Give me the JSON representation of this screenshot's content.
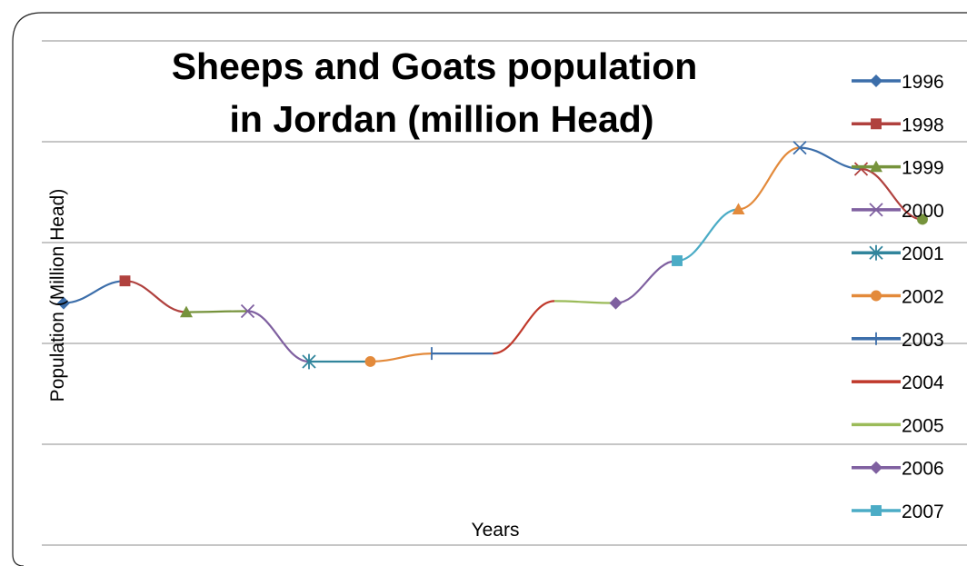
{
  "chart_data": {
    "type": "line",
    "title_lines": [
      "Sheeps and Goats population",
      "in Jordan (million Head)"
    ],
    "xlabel": "Years",
    "ylabel": "Population (Million Head)",
    "grid": true,
    "legend_position": "right",
    "ylim": [
      0,
      5
    ],
    "series": [
      {
        "name": "1996",
        "color": "#3c6eaa",
        "marker": "diamond",
        "x": [
          0,
          1
        ],
        "y": [
          2.4,
          2.62
        ]
      },
      {
        "name": "1998",
        "color": "#b0413e",
        "marker": "square",
        "x": [
          1,
          2
        ],
        "y": [
          2.62,
          2.31
        ]
      },
      {
        "name": "1999",
        "color": "#76933c",
        "marker": "triangle",
        "x": [
          2,
          3
        ],
        "y": [
          2.31,
          2.32
        ]
      },
      {
        "name": "2000",
        "color": "#7f60a0",
        "marker": "x",
        "x": [
          3,
          4
        ],
        "y": [
          2.32,
          1.82
        ]
      },
      {
        "name": "2001",
        "color": "#31859c",
        "marker": "star",
        "x": [
          4,
          5
        ],
        "y": [
          1.82,
          1.82
        ]
      },
      {
        "name": "2002",
        "color": "#e38a3b",
        "marker": "circle",
        "x": [
          5,
          6
        ],
        "y": [
          1.82,
          1.9
        ]
      },
      {
        "name": "2003",
        "color": "#3c6eaa",
        "marker": "plus",
        "x": [
          6,
          7
        ],
        "y": [
          1.9,
          1.9
        ]
      },
      {
        "name": "2004",
        "color": "#c0392b",
        "marker": "none",
        "x": [
          7,
          8
        ],
        "y": [
          1.9,
          2.42
        ]
      },
      {
        "name": "2005",
        "color": "#9bbb59",
        "marker": "none",
        "x": [
          8,
          9
        ],
        "y": [
          2.42,
          2.4
        ]
      },
      {
        "name": "2006",
        "color": "#7f60a0",
        "marker": "diamond",
        "x": [
          9,
          10
        ],
        "y": [
          2.4,
          2.82
        ]
      },
      {
        "name": "2007",
        "color": "#4bacc6",
        "marker": "square",
        "x": [
          10,
          11
        ],
        "y": [
          2.82,
          3.33
        ]
      },
      {
        "name": "",
        "color": "#e38a3b",
        "marker": "triangle",
        "x": [
          11,
          12
        ],
        "y": [
          3.33,
          3.94
        ]
      },
      {
        "name": "",
        "color": "#3c6eaa",
        "marker": "x",
        "x": [
          12,
          13
        ],
        "y": [
          3.94,
          3.73
        ]
      },
      {
        "name": "",
        "color": "#b0413e",
        "marker": "x",
        "x": [
          13,
          14
        ],
        "y": [
          3.73,
          3.23
        ]
      },
      {
        "name": "",
        "color": "#76933c",
        "marker": "circle",
        "x": [
          14
        ],
        "y": [
          3.23
        ]
      }
    ]
  },
  "legend_items": [
    {
      "label": "1996",
      "color": "#3c6eaa",
      "marker": "diamond"
    },
    {
      "label": "1998",
      "color": "#b0413e",
      "marker": "square"
    },
    {
      "label": "1999",
      "color": "#76933c",
      "marker": "triangle"
    },
    {
      "label": "2000",
      "color": "#7f60a0",
      "marker": "x"
    },
    {
      "label": "2001",
      "color": "#31859c",
      "marker": "star"
    },
    {
      "label": "2002",
      "color": "#e38a3b",
      "marker": "circle"
    },
    {
      "label": "2003",
      "color": "#3c6eaa",
      "marker": "plus"
    },
    {
      "label": "2004",
      "color": "#c0392b",
      "marker": "none"
    },
    {
      "label": "2005",
      "color": "#9bbb59",
      "marker": "none"
    },
    {
      "label": "2006",
      "color": "#7f60a0",
      "marker": "diamond"
    },
    {
      "label": "2007",
      "color": "#4bacc6",
      "marker": "square"
    }
  ]
}
